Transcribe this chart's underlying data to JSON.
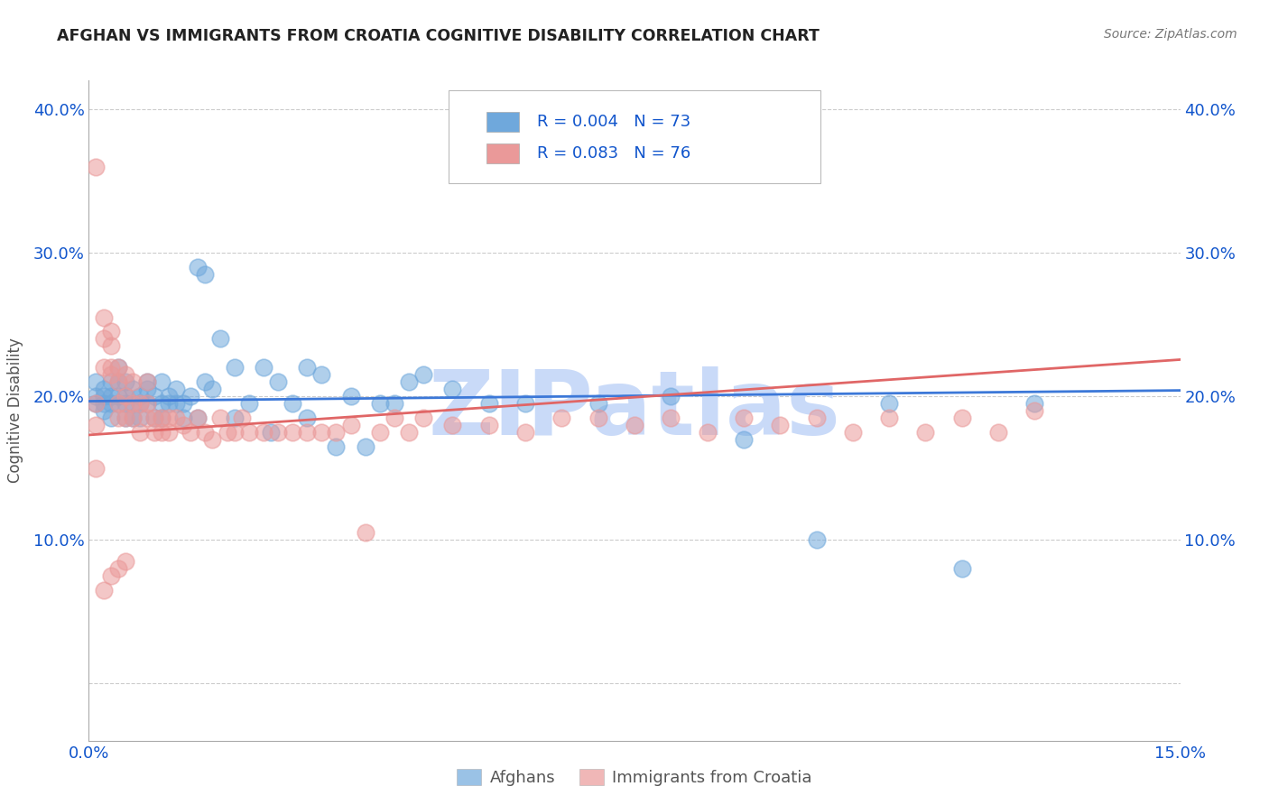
{
  "title": "AFGHAN VS IMMIGRANTS FROM CROATIA COGNITIVE DISABILITY CORRELATION CHART",
  "source": "Source: ZipAtlas.com",
  "ylabel": "Cognitive Disability",
  "xlim": [
    0.0,
    0.15
  ],
  "ylim": [
    -0.04,
    0.42
  ],
  "yticks": [
    0.0,
    0.1,
    0.2,
    0.3,
    0.4
  ],
  "ytick_labels": [
    "",
    "10.0%",
    "20.0%",
    "30.0%",
    "40.0%"
  ],
  "xtick_labels": [
    "0.0%",
    "15.0%"
  ],
  "afghan_color": "#6fa8dc",
  "croatia_color": "#ea9999",
  "afghan_R": 0.004,
  "afghan_N": 73,
  "croatia_R": 0.083,
  "croatia_N": 76,
  "afghan_line_color": "#3c78d8",
  "croatia_line_color": "#e06666",
  "watermark": "ZIPatlas",
  "watermark_color": "#c9daf8",
  "legend_color": "#1155cc",
  "grid_color": "#cccccc",
  "afghans_scatter_x": [
    0.001,
    0.001,
    0.001,
    0.002,
    0.002,
    0.002,
    0.002,
    0.003,
    0.003,
    0.003,
    0.003,
    0.004,
    0.004,
    0.004,
    0.004,
    0.005,
    0.005,
    0.005,
    0.005,
    0.006,
    0.006,
    0.006,
    0.007,
    0.007,
    0.007,
    0.008,
    0.008,
    0.008,
    0.009,
    0.009,
    0.01,
    0.01,
    0.01,
    0.011,
    0.011,
    0.012,
    0.012,
    0.013,
    0.013,
    0.014,
    0.015,
    0.016,
    0.016,
    0.017,
    0.018,
    0.02,
    0.022,
    0.024,
    0.026,
    0.028,
    0.03,
    0.032,
    0.034,
    0.036,
    0.038,
    0.04,
    0.042,
    0.044,
    0.046,
    0.05,
    0.055,
    0.06,
    0.07,
    0.08,
    0.09,
    0.1,
    0.11,
    0.12,
    0.13,
    0.015,
    0.02,
    0.025,
    0.03
  ],
  "afghans_scatter_y": [
    0.2,
    0.21,
    0.195,
    0.205,
    0.195,
    0.19,
    0.2,
    0.21,
    0.2,
    0.185,
    0.195,
    0.2,
    0.21,
    0.195,
    0.22,
    0.185,
    0.2,
    0.195,
    0.21,
    0.195,
    0.185,
    0.205,
    0.195,
    0.2,
    0.185,
    0.195,
    0.205,
    0.21,
    0.185,
    0.2,
    0.195,
    0.21,
    0.185,
    0.195,
    0.2,
    0.195,
    0.205,
    0.185,
    0.195,
    0.2,
    0.29,
    0.285,
    0.21,
    0.205,
    0.24,
    0.22,
    0.195,
    0.22,
    0.21,
    0.195,
    0.22,
    0.215,
    0.165,
    0.2,
    0.165,
    0.195,
    0.195,
    0.21,
    0.215,
    0.205,
    0.195,
    0.195,
    0.195,
    0.2,
    0.17,
    0.1,
    0.195,
    0.08,
    0.195,
    0.185,
    0.185,
    0.175,
    0.185
  ],
  "croatia_scatter_x": [
    0.001,
    0.001,
    0.001,
    0.002,
    0.002,
    0.002,
    0.003,
    0.003,
    0.003,
    0.003,
    0.004,
    0.004,
    0.004,
    0.004,
    0.005,
    0.005,
    0.005,
    0.006,
    0.006,
    0.006,
    0.007,
    0.007,
    0.008,
    0.008,
    0.008,
    0.009,
    0.009,
    0.01,
    0.01,
    0.011,
    0.011,
    0.012,
    0.013,
    0.014,
    0.015,
    0.016,
    0.017,
    0.018,
    0.019,
    0.02,
    0.021,
    0.022,
    0.024,
    0.026,
    0.028,
    0.03,
    0.032,
    0.034,
    0.036,
    0.038,
    0.04,
    0.042,
    0.044,
    0.046,
    0.05,
    0.055,
    0.06,
    0.065,
    0.07,
    0.075,
    0.08,
    0.085,
    0.09,
    0.095,
    0.1,
    0.105,
    0.11,
    0.115,
    0.12,
    0.125,
    0.13,
    0.001,
    0.002,
    0.003,
    0.004,
    0.005
  ],
  "croatia_scatter_y": [
    0.36,
    0.195,
    0.18,
    0.24,
    0.255,
    0.22,
    0.245,
    0.235,
    0.22,
    0.215,
    0.21,
    0.22,
    0.195,
    0.185,
    0.2,
    0.215,
    0.185,
    0.195,
    0.21,
    0.185,
    0.195,
    0.175,
    0.195,
    0.21,
    0.185,
    0.175,
    0.185,
    0.175,
    0.185,
    0.175,
    0.185,
    0.185,
    0.18,
    0.175,
    0.185,
    0.175,
    0.17,
    0.185,
    0.175,
    0.175,
    0.185,
    0.175,
    0.175,
    0.175,
    0.175,
    0.175,
    0.175,
    0.175,
    0.18,
    0.105,
    0.175,
    0.185,
    0.175,
    0.185,
    0.18,
    0.18,
    0.175,
    0.185,
    0.185,
    0.18,
    0.185,
    0.175,
    0.185,
    0.18,
    0.185,
    0.175,
    0.185,
    0.175,
    0.185,
    0.175,
    0.19,
    0.15,
    0.065,
    0.075,
    0.08,
    0.085
  ]
}
